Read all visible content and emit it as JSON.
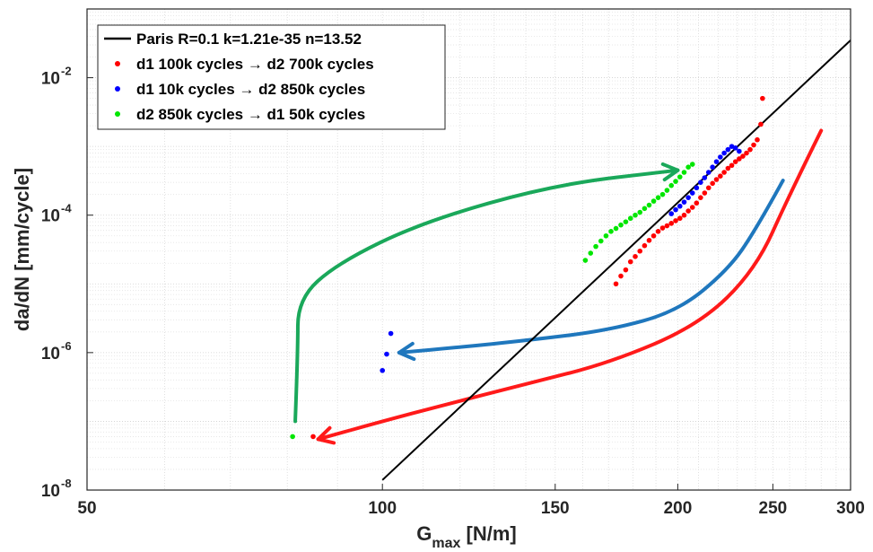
{
  "chart_data": {
    "type": "scatter",
    "x_scale": "log",
    "y_scale": "log",
    "xlim": [
      50,
      300
    ],
    "ylim": [
      1e-08,
      0.1
    ],
    "grid": "minor dotted",
    "legend_position": "top-left",
    "x_ticks": [
      {
        "value": 50,
        "label": "50"
      },
      {
        "value": 100,
        "label": "100"
      },
      {
        "value": 150,
        "label": "150"
      },
      {
        "value": 200,
        "label": "200"
      },
      {
        "value": 250,
        "label": "250"
      },
      {
        "value": 300,
        "label": "300"
      }
    ],
    "y_ticks": [
      {
        "value": 1e-08,
        "base": "10",
        "exp": "-8"
      },
      {
        "value": 1e-06,
        "base": "10",
        "exp": "-6"
      },
      {
        "value": 0.0001,
        "base": "10",
        "exp": "-4"
      },
      {
        "value": 0.01,
        "base": "10",
        "exp": "-2"
      }
    ],
    "xlabel": {
      "main": "G",
      "sub": "max",
      "rest": " [N/m]"
    },
    "ylabel": "da/dN [mm/cycle]",
    "colors": {
      "paris": "#000000",
      "red": "#ff0000",
      "blue": "#0000ff",
      "green": "#00e600",
      "curve_green": "#1aa85a",
      "curve_blue": "#1f77bd",
      "curve_red": "#ff1a1a"
    },
    "series": [
      {
        "name": "Paris R=0.1 k=1.21e-35 n=13.52",
        "kind": "line",
        "color": "#000000",
        "x": [
          100,
          300
        ],
        "y": [
          1.4e-08,
          0.035
        ]
      },
      {
        "name": "d1 100k cycles → d2 700k cycles",
        "kind": "points",
        "color": "#ff0000",
        "x": [
          85,
          173,
          175,
          177,
          179,
          181,
          183,
          185,
          187,
          189,
          191,
          193,
          195,
          197,
          199,
          201,
          203,
          205,
          207,
          209,
          211,
          213,
          215,
          217,
          219,
          221,
          223,
          225,
          227,
          229,
          231,
          233,
          235,
          237,
          239,
          241,
          243,
          244
        ],
        "y": [
          6e-08,
          1e-05,
          1.3e-05,
          1.6e-05,
          2.1e-05,
          2.5e-05,
          3e-05,
          3.6e-05,
          4.3e-05,
          5e-05,
          5.8e-05,
          6.5e-05,
          7e-05,
          7.6e-05,
          8.3e-05,
          9e-05,
          0.0001,
          0.000115,
          0.00013,
          0.00015,
          0.00018,
          0.00021,
          0.00025,
          0.00029,
          0.00033,
          0.00037,
          0.00042,
          0.00048,
          0.00053,
          0.0006,
          0.00066,
          0.00072,
          0.0008,
          0.0009,
          0.00105,
          0.00125,
          0.0021,
          0.005
        ]
      },
      {
        "name": "d1 10k cycles → d2 850k cycles",
        "kind": "points",
        "color": "#0000ff",
        "x": [
          100,
          101,
          102,
          197,
          199,
          201,
          203,
          205,
          207,
          209,
          211,
          213,
          215,
          217,
          219,
          221,
          223,
          225,
          227,
          229,
          231
        ],
        "y": [
          5.5e-07,
          9.5e-07,
          1.9e-06,
          0.000105,
          0.00012,
          0.000135,
          0.000155,
          0.00018,
          0.00021,
          0.00025,
          0.0003,
          0.00035,
          0.00042,
          0.0005,
          0.0006,
          0.0007,
          0.0008,
          0.0009,
          0.001,
          0.00095,
          0.00085
        ]
      },
      {
        "name": "d2 850k cycles → d1 50k cycles",
        "kind": "points",
        "color": "#00e600",
        "x": [
          81,
          161,
          163,
          165,
          167,
          169,
          171,
          173,
          175,
          177,
          179,
          181,
          183,
          185,
          187,
          189,
          191,
          193,
          195,
          197,
          199,
          201,
          203,
          205,
          207
        ],
        "y": [
          6e-08,
          2.2e-05,
          2.8e-05,
          3.5e-05,
          4.2e-05,
          5e-05,
          5.8e-05,
          6.4e-05,
          7.2e-05,
          8e-05,
          9e-05,
          0.0001,
          0.00011,
          0.000125,
          0.00014,
          0.00016,
          0.00018,
          0.0002,
          0.00023,
          0.00027,
          0.00031,
          0.00036,
          0.00042,
          0.0005,
          0.00055
        ]
      }
    ],
    "annotations": [
      {
        "kind": "arrow",
        "color": "#1aa85a",
        "x": [
          81.5,
          82,
          82,
          90,
          110,
          150,
          200
        ],
        "y": [
          1e-07,
          1e-06,
          6e-06,
          2e-05,
          8e-05,
          0.00028,
          0.00045
        ]
      },
      {
        "kind": "arrow",
        "color": "#1f77bd",
        "x": [
          256,
          240,
          225,
          200,
          170,
          140,
          120,
          104
        ],
        "y": [
          0.00032,
          6e-05,
          1.6e-05,
          4e-06,
          2.1e-06,
          1.5e-06,
          1.2e-06,
          1e-06
        ]
      },
      {
        "kind": "arrow",
        "color": "#ff1a1a",
        "x": [
          280,
          260,
          240,
          210,
          170,
          140,
          115,
          100,
          86
        ],
        "y": [
          0.0017,
          0.0002,
          1.6e-05,
          2.5e-06,
          7e-07,
          3.5e-07,
          1.7e-07,
          1e-07,
          5.5e-08
        ]
      }
    ]
  }
}
